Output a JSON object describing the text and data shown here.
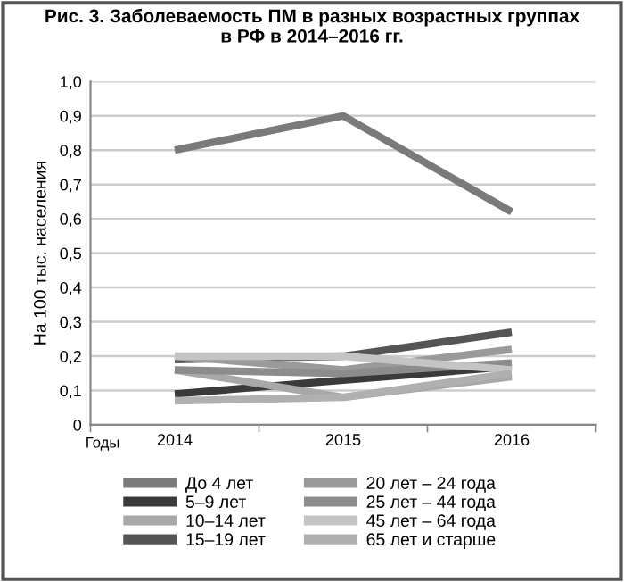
{
  "chart_data": {
    "type": "line",
    "title": "Рис. 3. Заболеваемость ПМ в разных возрастных группах\nв РФ в 2014–2016 гг.",
    "ylabel": "На 100 тыс. населения",
    "xlabel": "Годы",
    "categories": [
      "2014",
      "2015",
      "2016"
    ],
    "series": [
      {
        "name": "До 4 лет",
        "color": "#7a7a7a",
        "values": [
          0.8,
          0.9,
          0.62
        ]
      },
      {
        "name": "5–9 лет",
        "color": "#3a3a3a",
        "values": [
          0.09,
          0.13,
          0.17
        ]
      },
      {
        "name": "10–14 лет",
        "color": "#a8a8a8",
        "values": [
          0.16,
          0.08,
          0.14
        ]
      },
      {
        "name": "15–19 лет",
        "color": "#555555",
        "values": [
          0.19,
          0.2,
          0.27
        ]
      },
      {
        "name": "20 лет – 24 года",
        "color": "#9a9a9a",
        "values": [
          0.2,
          0.16,
          0.22
        ]
      },
      {
        "name": "25 лет – 44 года",
        "color": "#8c8c8c",
        "values": [
          0.16,
          0.15,
          0.18
        ]
      },
      {
        "name": "45 лет – 64 года",
        "color": "#c4c4c4",
        "values": [
          0.2,
          0.2,
          0.16
        ]
      },
      {
        "name": "65 лет и старше",
        "color": "#b0b0b0",
        "values": [
          0.07,
          0.08,
          0.15
        ]
      }
    ],
    "ylim": [
      0,
      1.0
    ],
    "yticks": [
      {
        "value": 0,
        "label": "0"
      },
      {
        "value": 0.1,
        "label": "0,1"
      },
      {
        "value": 0.2,
        "label": "0,2"
      },
      {
        "value": 0.3,
        "label": "0,3"
      },
      {
        "value": 0.4,
        "label": "0,4"
      },
      {
        "value": 0.5,
        "label": "0,5"
      },
      {
        "value": 0.6,
        "label": "0,6"
      },
      {
        "value": 0.7,
        "label": "0,7"
      },
      {
        "value": 0.8,
        "label": "0,8"
      },
      {
        "value": 0.9,
        "label": "0,9"
      },
      {
        "value": 1.0,
        "label": "1,0"
      }
    ],
    "grid": "y",
    "legend": "bottom",
    "marker": "none",
    "line_style": "solid"
  }
}
